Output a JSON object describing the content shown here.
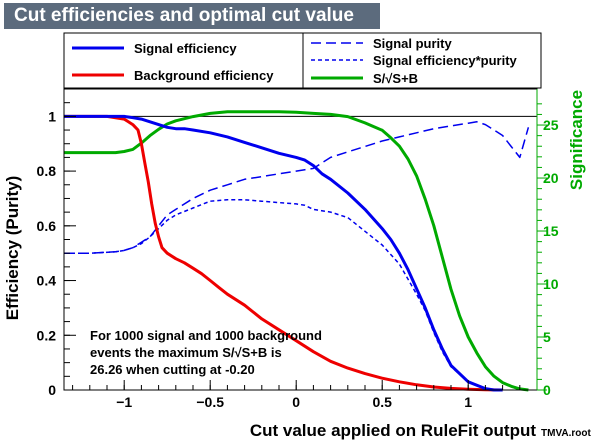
{
  "title": "Cut efficiencies and optimal cut value",
  "footer": "TMVA.root",
  "chart_data": {
    "type": "line",
    "xlabel": "Cut value applied on RuleFit output",
    "ylabel": "Efficiency (Purity)",
    "y2label": "Significance",
    "xlim": [
      -1.35,
      1.4
    ],
    "ylim": [
      0,
      1.1
    ],
    "y2lim": [
      0,
      28.4
    ],
    "x_ticks": [
      {
        "value": -1,
        "label": "−1"
      },
      {
        "value": -0.5,
        "label": "−0.5"
      },
      {
        "value": 0,
        "label": "0"
      },
      {
        "value": 0.5,
        "label": "0.5"
      },
      {
        "value": 1,
        "label": "1"
      }
    ],
    "y_ticks": [
      {
        "value": 0,
        "label": "0"
      },
      {
        "value": 0.2,
        "label": "0.2"
      },
      {
        "value": 0.4,
        "label": "0.4"
      },
      {
        "value": 0.6,
        "label": "0.6"
      },
      {
        "value": 0.8,
        "label": "0.8"
      },
      {
        "value": 1,
        "label": "1"
      }
    ],
    "y2_ticks": [
      {
        "value": 0,
        "label": "0"
      },
      {
        "value": 5,
        "label": "5"
      },
      {
        "value": 10,
        "label": "10"
      },
      {
        "value": 15,
        "label": "15"
      },
      {
        "value": 20,
        "label": "20"
      },
      {
        "value": 25,
        "label": "25"
      }
    ],
    "annotation": [
      "For 1000 signal and 1000 background",
      "events the maximum S/√S+B is",
      "26.26 when cutting at -0.20"
    ],
    "legend": {
      "placement": "top"
    },
    "series": [
      {
        "name": "Signal efficiency",
        "color": "#0000ee",
        "style": "solid",
        "axis": "left",
        "x": [
          -1.35,
          -1.1,
          -1.0,
          -0.95,
          -0.9,
          -0.85,
          -0.8,
          -0.75,
          -0.7,
          -0.65,
          -0.6,
          -0.5,
          -0.4,
          -0.3,
          -0.2,
          -0.1,
          0.0,
          0.05,
          0.1,
          0.15,
          0.2,
          0.3,
          0.4,
          0.5,
          0.55,
          0.6,
          0.65,
          0.7,
          0.75,
          0.8,
          0.85,
          0.9,
          1.0,
          1.1,
          1.15,
          1.2
        ],
        "y": [
          1.0,
          1.0,
          1.0,
          0.995,
          0.99,
          0.98,
          0.97,
          0.96,
          0.955,
          0.955,
          0.95,
          0.94,
          0.925,
          0.905,
          0.885,
          0.865,
          0.85,
          0.84,
          0.82,
          0.79,
          0.77,
          0.72,
          0.66,
          0.59,
          0.55,
          0.5,
          0.44,
          0.37,
          0.3,
          0.22,
          0.15,
          0.09,
          0.03,
          0.005,
          0.0,
          0.0
        ]
      },
      {
        "name": "Background efficiency",
        "color": "#ee0000",
        "style": "solid",
        "axis": "left",
        "x": [
          -1.35,
          -1.1,
          -1.0,
          -0.95,
          -0.92,
          -0.9,
          -0.88,
          -0.86,
          -0.84,
          -0.82,
          -0.8,
          -0.78,
          -0.75,
          -0.7,
          -0.65,
          -0.6,
          -0.55,
          -0.5,
          -0.45,
          -0.4,
          -0.3,
          -0.2,
          -0.1,
          0.0,
          0.1,
          0.2,
          0.3,
          0.4,
          0.5,
          0.6,
          0.7,
          0.8,
          0.9,
          1.0,
          1.1,
          1.2
        ],
        "y": [
          1.0,
          1.0,
          0.99,
          0.97,
          0.95,
          0.9,
          0.83,
          0.76,
          0.68,
          0.61,
          0.56,
          0.52,
          0.5,
          0.48,
          0.465,
          0.445,
          0.425,
          0.4,
          0.375,
          0.35,
          0.31,
          0.26,
          0.22,
          0.18,
          0.14,
          0.105,
          0.08,
          0.06,
          0.043,
          0.03,
          0.019,
          0.011,
          0.006,
          0.003,
          0.001,
          0.0
        ]
      },
      {
        "name": "Signal purity",
        "color": "#0000ee",
        "style": "dashed",
        "axis": "left",
        "x": [
          -1.35,
          -1.2,
          -1.05,
          -1.0,
          -0.95,
          -0.9,
          -0.85,
          -0.8,
          -0.75,
          -0.7,
          -0.6,
          -0.5,
          -0.4,
          -0.3,
          -0.2,
          -0.1,
          0.0,
          0.1,
          0.2,
          0.3,
          0.4,
          0.5,
          0.6,
          0.7,
          0.8,
          0.9,
          1.0,
          1.05,
          1.1,
          1.15,
          1.2,
          1.25,
          1.3,
          1.35
        ],
        "y": [
          0.5,
          0.5,
          0.505,
          0.51,
          0.52,
          0.54,
          0.56,
          0.6,
          0.64,
          0.66,
          0.7,
          0.73,
          0.75,
          0.77,
          0.78,
          0.79,
          0.8,
          0.81,
          0.85,
          0.87,
          0.89,
          0.91,
          0.925,
          0.94,
          0.955,
          0.965,
          0.975,
          0.98,
          0.97,
          0.95,
          0.93,
          0.89,
          0.85,
          0.96
        ]
      },
      {
        "name": "Signal efficiency*purity",
        "color": "#0000ee",
        "style": "dotted",
        "axis": "left",
        "x": [
          -1.35,
          -1.2,
          -1.05,
          -1.0,
          -0.95,
          -0.9,
          -0.85,
          -0.8,
          -0.75,
          -0.7,
          -0.6,
          -0.5,
          -0.4,
          -0.3,
          -0.2,
          -0.1,
          0.0,
          0.05,
          0.1,
          0.2,
          0.3,
          0.4,
          0.5,
          0.6,
          0.7,
          0.75,
          0.8,
          0.85,
          0.9,
          1.0,
          1.1,
          1.15
        ],
        "y": [
          0.5,
          0.5,
          0.505,
          0.51,
          0.52,
          0.535,
          0.56,
          0.59,
          0.62,
          0.64,
          0.665,
          0.69,
          0.695,
          0.695,
          0.69,
          0.685,
          0.68,
          0.675,
          0.66,
          0.65,
          0.63,
          0.58,
          0.53,
          0.46,
          0.35,
          0.29,
          0.21,
          0.14,
          0.085,
          0.03,
          0.005,
          0.0
        ]
      },
      {
        "name": "S/√S+B",
        "color": "#00aa00",
        "style": "solid",
        "axis": "right",
        "x": [
          -1.35,
          -1.05,
          -1.0,
          -0.95,
          -0.9,
          -0.85,
          -0.8,
          -0.75,
          -0.7,
          -0.6,
          -0.5,
          -0.4,
          -0.3,
          -0.2,
          -0.1,
          0.0,
          0.1,
          0.2,
          0.3,
          0.4,
          0.5,
          0.55,
          0.6,
          0.65,
          0.7,
          0.75,
          0.8,
          0.85,
          0.9,
          0.95,
          1.0,
          1.05,
          1.1,
          1.15,
          1.2,
          1.25,
          1.3,
          1.35
        ],
        "y": [
          22.4,
          22.4,
          22.5,
          22.7,
          23.3,
          24.0,
          24.6,
          25.1,
          25.4,
          25.8,
          26.1,
          26.25,
          26.26,
          26.26,
          26.25,
          26.2,
          26.1,
          26.0,
          25.8,
          25.2,
          24.5,
          23.8,
          23.0,
          21.8,
          20.2,
          18.0,
          15.5,
          12.5,
          9.5,
          7.0,
          5.0,
          3.5,
          2.2,
          1.3,
          0.7,
          0.35,
          0.1,
          0.0
        ]
      }
    ]
  }
}
